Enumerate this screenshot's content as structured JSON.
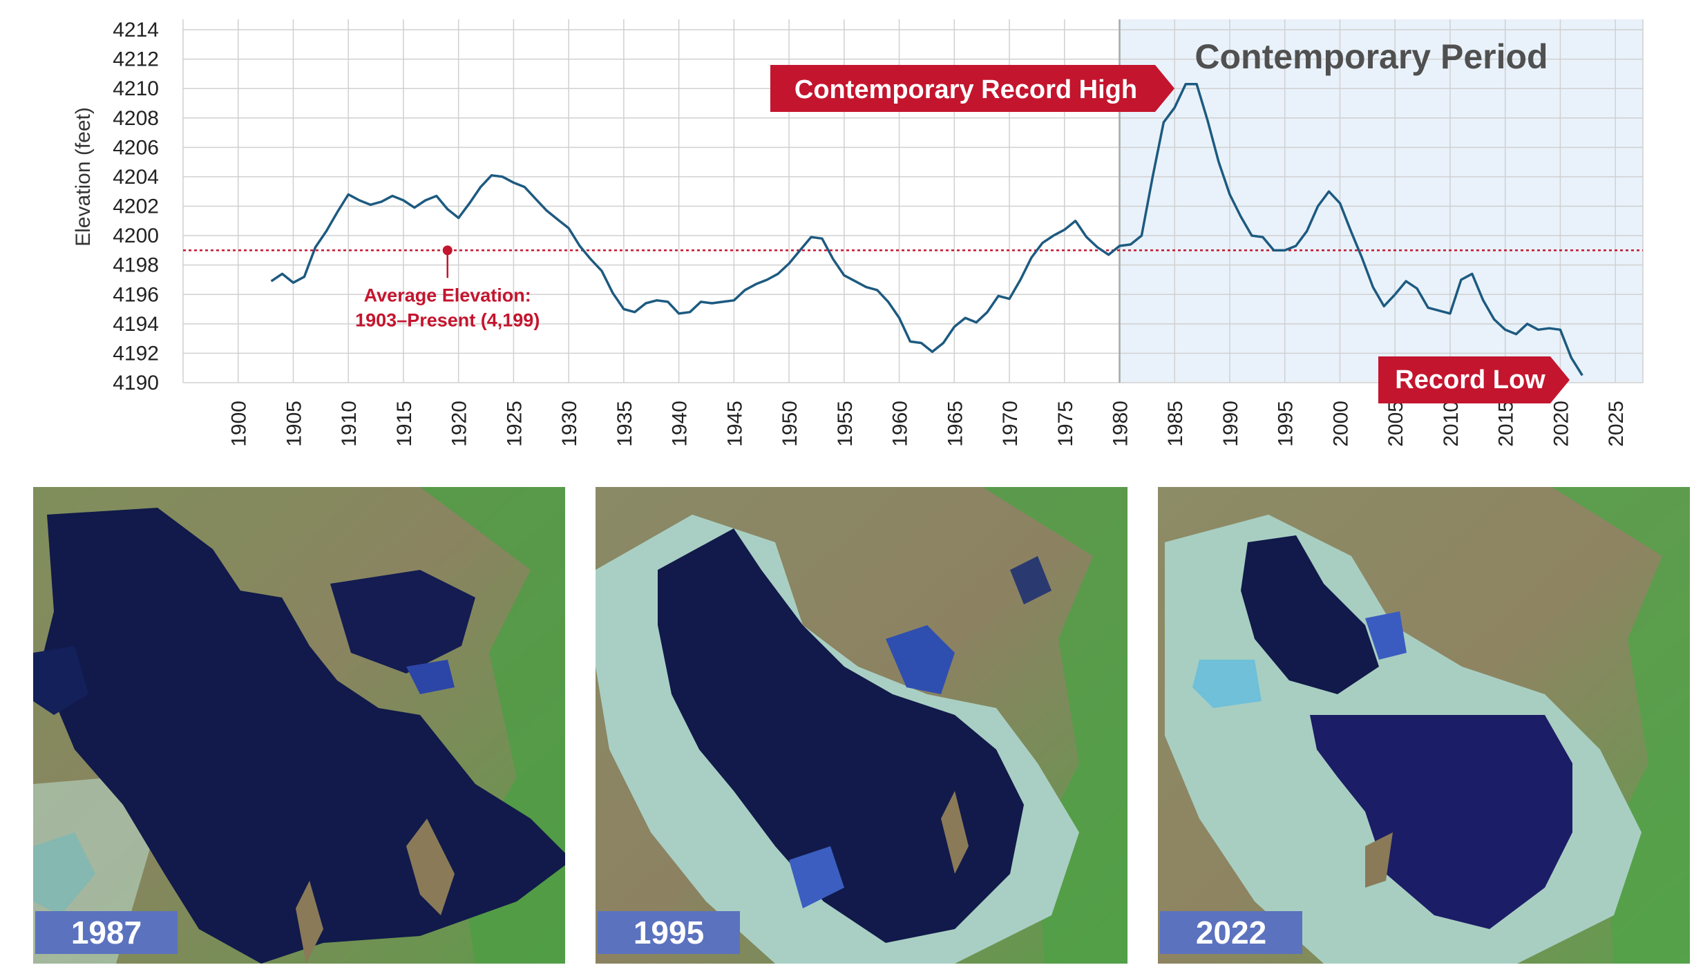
{
  "chart_data": {
    "type": "line",
    "title": "",
    "xlabel": "",
    "ylabel": "Elevation (feet)",
    "xlim": [
      1900,
      2025
    ],
    "ylim": [
      4190,
      4214
    ],
    "x_ticks": [
      1900,
      1905,
      1910,
      1915,
      1920,
      1925,
      1930,
      1935,
      1940,
      1945,
      1950,
      1955,
      1960,
      1965,
      1970,
      1975,
      1980,
      1985,
      1990,
      1995,
      2000,
      2005,
      2010,
      2015,
      2020,
      2025
    ],
    "y_ticks": [
      4190,
      4192,
      4194,
      4196,
      4198,
      4200,
      4202,
      4204,
      4206,
      4208,
      4210,
      4212,
      4214
    ],
    "grid": true,
    "series": [
      {
        "color": "#1d5a80",
        "x": [
          1903,
          1904,
          1905,
          1906,
          1907,
          1908,
          1909,
          1910,
          1911,
          1912,
          1913,
          1914,
          1915,
          1916,
          1917,
          1918,
          1919,
          1920,
          1921,
          1922,
          1923,
          1924,
          1925,
          1926,
          1927,
          1928,
          1929,
          1930,
          1931,
          1932,
          1933,
          1934,
          1935,
          1936,
          1937,
          1938,
          1939,
          1940,
          1941,
          1942,
          1943,
          1944,
          1945,
          1946,
          1947,
          1948,
          1949,
          1950,
          1951,
          1952,
          1953,
          1954,
          1955,
          1956,
          1957,
          1958,
          1959,
          1960,
          1961,
          1962,
          1963,
          1964,
          1965,
          1966,
          1967,
          1968,
          1969,
          1970,
          1971,
          1972,
          1973,
          1974,
          1975,
          1976,
          1977,
          1978,
          1979,
          1980,
          1981,
          1982,
          1983,
          1984,
          1985,
          1986,
          1987,
          1988,
          1989,
          1990,
          1991,
          1992,
          1993,
          1994,
          1995,
          1996,
          1997,
          1998,
          1999,
          2000,
          2001,
          2002,
          2003,
          2004,
          2005,
          2006,
          2007,
          2008,
          2009,
          2010,
          2011,
          2012,
          2013,
          2014,
          2015,
          2016,
          2017,
          2018,
          2019,
          2020,
          2021,
          2022
        ],
        "values": [
          4196.9,
          4197.4,
          4196.8,
          4197.2,
          4199.2,
          4200.3,
          4201.6,
          4202.8,
          4202.4,
          4202.1,
          4202.3,
          4202.7,
          4202.4,
          4201.9,
          4202.4,
          4202.7,
          4201.8,
          4201.2,
          4202.2,
          4203.3,
          4204.1,
          4204.0,
          4203.6,
          4203.3,
          4202.5,
          4201.7,
          4201.1,
          4200.5,
          4199.3,
          4198.4,
          4197.6,
          4196.1,
          4195.0,
          4194.8,
          4195.4,
          4195.6,
          4195.5,
          4194.7,
          4194.8,
          4195.5,
          4195.4,
          4195.5,
          4195.6,
          4196.3,
          4196.7,
          4197.0,
          4197.4,
          4198.1,
          4199.0,
          4199.9,
          4199.8,
          4198.4,
          4197.3,
          4196.9,
          4196.5,
          4196.3,
          4195.5,
          4194.4,
          4192.8,
          4192.7,
          4192.1,
          4192.7,
          4193.8,
          4194.4,
          4194.1,
          4194.8,
          4195.9,
          4195.7,
          4197.0,
          4198.5,
          4199.5,
          4200.0,
          4200.4,
          4201.0,
          4199.9,
          4199.2,
          4198.7,
          4199.3,
          4199.4,
          4200.0,
          4204.0,
          4207.7,
          4208.7,
          4210.3,
          4210.3,
          4207.8,
          4205.0,
          4202.8,
          4201.3,
          4200.0,
          4199.9,
          4199.0,
          4199.0,
          4199.3,
          4200.3,
          4202.0,
          4203.0,
          4202.2,
          4200.3,
          4198.5,
          4196.5,
          4195.2,
          4196.0,
          4196.9,
          4196.4,
          4195.1,
          4194.9,
          4194.7,
          4197.0,
          4197.4,
          4195.6,
          4194.3,
          4193.6,
          4193.3,
          4194.0,
          4193.6,
          4193.7,
          4193.6,
          4191.7,
          4190.5
        ]
      }
    ],
    "average": {
      "value": 4199,
      "marker_x": 1919
    },
    "shaded_range": [
      1980,
      2027.5
    ],
    "annotations": {
      "period_label": "Contemporary Period",
      "record_high": "Contemporary Record High",
      "record_low": "Record Low",
      "average_line1": "Average Elevation:",
      "average_line2": "1903–Present (4,199)"
    },
    "colors": {
      "line": "#1d5a80",
      "average": "#c4152e",
      "flag": "#c4152e",
      "shade": "#e9f2fa",
      "grid": "#d0d0d0"
    }
  },
  "images": [
    {
      "year": "1987"
    },
    {
      "year": "1995"
    },
    {
      "year": "2022"
    }
  ],
  "colors": {
    "badge": "#5b72bf"
  }
}
